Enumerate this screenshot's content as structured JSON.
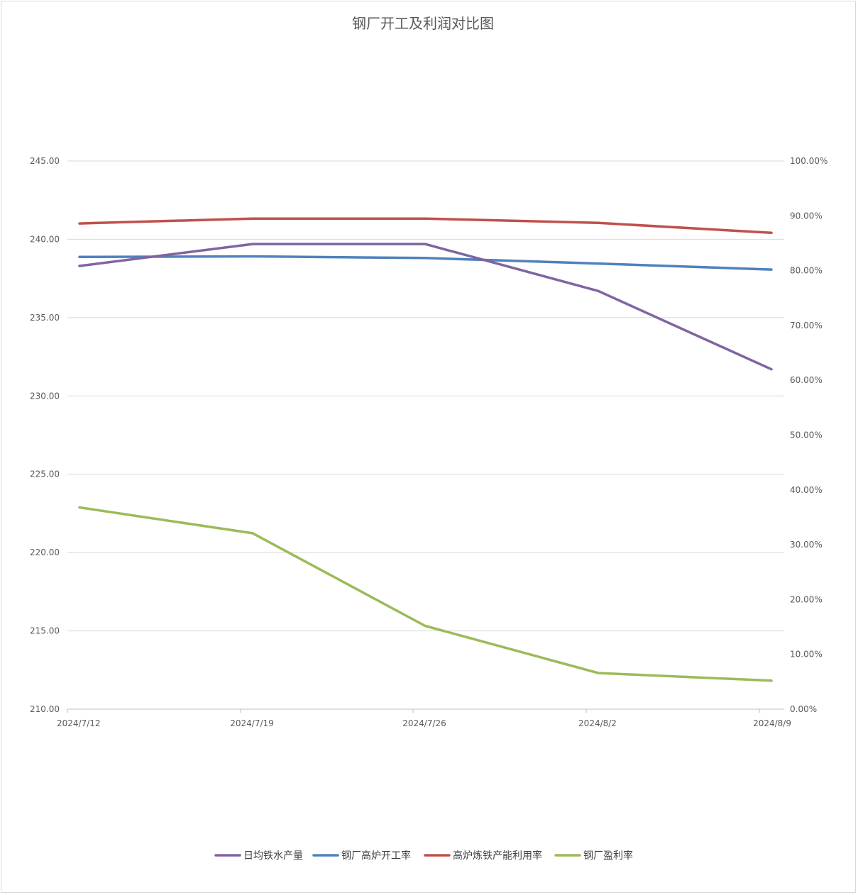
{
  "chart_data": {
    "type": "line",
    "title": "钢厂开工及利润对比图",
    "categories": [
      "2024/7/12",
      "2024/7/19",
      "2024/7/26",
      "2024/8/2",
      "2024/8/9"
    ],
    "y_left": {
      "min": 210,
      "max": 245,
      "ticks": [
        "210.00",
        "215.00",
        "220.00",
        "225.00",
        "230.00",
        "235.00",
        "240.00",
        "245.00"
      ]
    },
    "y_right": {
      "min": 0,
      "max": 1,
      "ticks": [
        "0.00%",
        "10.00%",
        "20.00%",
        "30.00%",
        "40.00%",
        "50.00%",
        "60.00%",
        "70.00%",
        "80.00%",
        "90.00%",
        "100.00%"
      ]
    },
    "grid": true,
    "legend_position": "bottom",
    "series": [
      {
        "name": "日均铁水产量",
        "axis": "left",
        "color": "#8064a2",
        "values": [
          238.3,
          239.7,
          239.7,
          236.7,
          231.7
        ]
      },
      {
        "name": "钢厂高炉开工率",
        "axis": "right",
        "color": "#4f81bd",
        "values": [
          0.825,
          0.826,
          0.823,
          0.813,
          0.802
        ]
      },
      {
        "name": "高炉炼铁产能利用率",
        "axis": "right",
        "color": "#c0504d",
        "values": [
          0.886,
          0.895,
          0.895,
          0.887,
          0.869
        ]
      },
      {
        "name": "钢厂盈利率",
        "axis": "right",
        "color": "#9bbb59",
        "values": [
          0.368,
          0.321,
          0.152,
          0.066,
          0.052
        ]
      }
    ]
  }
}
